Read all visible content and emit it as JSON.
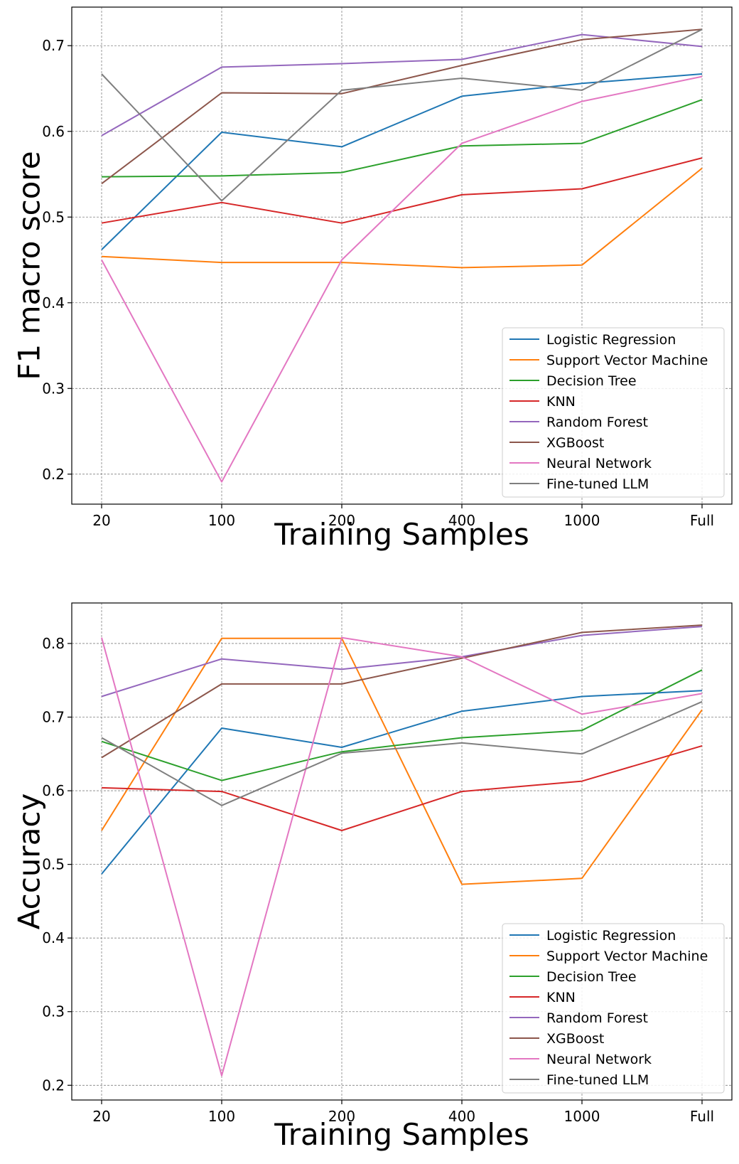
{
  "chart_data": [
    {
      "type": "line",
      "xlabel": "Training Samples",
      "ylabel": "F1 macro score",
      "categories": [
        "20",
        "100",
        "200",
        "400",
        "1000",
        "Full"
      ],
      "ylim": [
        0.165,
        0.745
      ],
      "yticks": [
        0.2,
        0.3,
        0.4,
        0.5,
        0.6,
        0.7
      ],
      "ytick_labels": [
        "0.2",
        "0.3",
        "0.4",
        "0.5",
        "0.6",
        "0.7"
      ],
      "grid": true,
      "legend_position": "bottom-right",
      "series": [
        {
          "name": "Logistic Regression",
          "color": "#1f77b4",
          "values": [
            0.462,
            0.599,
            0.582,
            0.641,
            0.656,
            0.667
          ]
        },
        {
          "name": "Support Vector Machine",
          "color": "#ff7f0e",
          "values": [
            0.454,
            0.447,
            0.447,
            0.441,
            0.444,
            0.557
          ]
        },
        {
          "name": "Decision Tree",
          "color": "#2ca02c",
          "values": [
            0.547,
            0.548,
            0.552,
            0.583,
            0.586,
            0.637
          ]
        },
        {
          "name": "KNN",
          "color": "#d62728",
          "values": [
            0.493,
            0.517,
            0.493,
            0.526,
            0.533,
            0.569
          ]
        },
        {
          "name": "Random Forest",
          "color": "#9467bd",
          "values": [
            0.595,
            0.675,
            0.679,
            0.684,
            0.713,
            0.699
          ]
        },
        {
          "name": "XGBoost",
          "color": "#8c564b",
          "values": [
            0.539,
            0.645,
            0.644,
            0.677,
            0.707,
            0.719
          ]
        },
        {
          "name": "Neural Network",
          "color": "#e377c2",
          "values": [
            0.45,
            0.191,
            0.45,
            0.586,
            0.635,
            0.664
          ]
        },
        {
          "name": "Fine-tuned LLM",
          "color": "#7f7f7f",
          "values": [
            0.667,
            0.519,
            0.648,
            0.662,
            0.648,
            0.719
          ]
        }
      ]
    },
    {
      "type": "line",
      "xlabel": "Training Samples",
      "ylabel": "Accuracy",
      "categories": [
        "20",
        "100",
        "200",
        "400",
        "1000",
        "Full"
      ],
      "ylim": [
        0.18,
        0.855
      ],
      "yticks": [
        0.2,
        0.3,
        0.4,
        0.5,
        0.6,
        0.7,
        0.8
      ],
      "ytick_labels": [
        "0.2",
        "0.3",
        "0.4",
        "0.5",
        "0.6",
        "0.7",
        "0.8"
      ],
      "grid": true,
      "legend_position": "bottom-right",
      "series": [
        {
          "name": "Logistic Regression",
          "color": "#1f77b4",
          "values": [
            0.487,
            0.685,
            0.659,
            0.708,
            0.728,
            0.736
          ]
        },
        {
          "name": "Support Vector Machine",
          "color": "#ff7f0e",
          "values": [
            0.546,
            0.807,
            0.807,
            0.473,
            0.481,
            0.71
          ]
        },
        {
          "name": "Decision Tree",
          "color": "#2ca02c",
          "values": [
            0.667,
            0.614,
            0.653,
            0.672,
            0.682,
            0.764
          ]
        },
        {
          "name": "KNN",
          "color": "#d62728",
          "values": [
            0.604,
            0.599,
            0.546,
            0.599,
            0.613,
            0.661
          ]
        },
        {
          "name": "Random Forest",
          "color": "#9467bd",
          "values": [
            0.728,
            0.779,
            0.765,
            0.782,
            0.811,
            0.823
          ]
        },
        {
          "name": "XGBoost",
          "color": "#8c564b",
          "values": [
            0.645,
            0.745,
            0.745,
            0.78,
            0.815,
            0.825
          ]
        },
        {
          "name": "Neural Network",
          "color": "#e377c2",
          "values": [
            0.808,
            0.213,
            0.808,
            0.782,
            0.704,
            0.732
          ]
        },
        {
          "name": "Fine-tuned LLM",
          "color": "#7f7f7f",
          "values": [
            0.672,
            0.58,
            0.651,
            0.665,
            0.65,
            0.721
          ]
        }
      ]
    }
  ]
}
